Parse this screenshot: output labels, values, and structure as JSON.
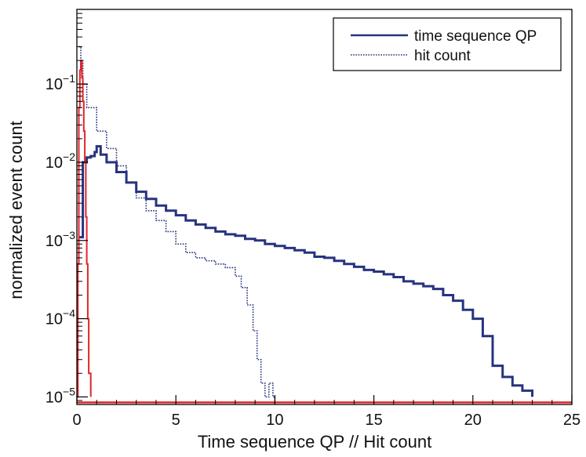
{
  "chart_data": {
    "type": "line",
    "xlabel": "Time sequence QP // Hit count",
    "ylabel": "normalized event count",
    "xlim": [
      0,
      25
    ],
    "ylim": [
      8e-06,
      0.9
    ],
    "yscale": "log",
    "x_ticks": [
      0,
      5,
      10,
      15,
      20,
      25
    ],
    "y_ticks": [
      {
        "value": 0.1,
        "base": "10",
        "exp": "−1"
      },
      {
        "value": 0.01,
        "base": "10",
        "exp": "−2"
      },
      {
        "value": 0.001,
        "base": "10",
        "exp": "−3"
      },
      {
        "value": 0.0001,
        "base": "10",
        "exp": "−4"
      },
      {
        "value": 1e-05,
        "base": "10",
        "exp": "−5"
      }
    ],
    "legend_position": "top-right",
    "series": [
      {
        "name": "time sequence QP",
        "style": "solid",
        "color": "#27337f",
        "x": [
          0.1,
          0.3,
          0.5,
          0.7,
          0.9,
          1.0,
          1.2,
          1.5,
          2.0,
          2.5,
          3.0,
          3.5,
          4.0,
          4.5,
          5.0,
          5.5,
          6.0,
          6.5,
          7.0,
          7.5,
          8.0,
          8.5,
          9.0,
          9.5,
          10.0,
          10.5,
          11.0,
          11.5,
          12.0,
          12.5,
          13.0,
          13.5,
          14.0,
          14.5,
          15.0,
          15.5,
          16.0,
          16.5,
          17.0,
          17.5,
          18.0,
          18.5,
          19.0,
          19.5,
          20.0,
          20.5,
          21.0,
          21.5,
          22.0,
          22.5,
          23.0
        ],
        "y": [
          0.0011,
          0.01,
          0.0115,
          0.012,
          0.0135,
          0.016,
          0.0125,
          0.01,
          0.0075,
          0.0055,
          0.0042,
          0.0034,
          0.0028,
          0.0024,
          0.0021,
          0.0018,
          0.0016,
          0.00145,
          0.0013,
          0.0012,
          0.00115,
          0.00105,
          0.001,
          0.0009,
          0.00085,
          0.0008,
          0.00075,
          0.0007,
          0.00062,
          0.0006,
          0.00055,
          0.0005,
          0.00046,
          0.00042,
          0.0004,
          0.00037,
          0.00034,
          0.0003,
          0.00028,
          0.00026,
          0.00024,
          0.0002,
          0.00017,
          0.00013,
          0.0001,
          6e-05,
          2.5e-05,
          1.8e-05,
          1.4e-05,
          1.2e-05,
          1e-05
        ]
      },
      {
        "name": "hit count",
        "style": "dotted",
        "color": "#27337f",
        "x": [
          0.1,
          0.2,
          0.3,
          0.5,
          1.0,
          1.5,
          2.0,
          2.5,
          3.0,
          3.5,
          4.0,
          4.5,
          5.0,
          5.5,
          6.0,
          6.5,
          7.0,
          7.5,
          8.0,
          8.3,
          8.6,
          8.9,
          9.1,
          9.3,
          9.5,
          9.7,
          9.9,
          10.0
        ],
        "y": [
          0.3,
          0.2,
          0.1,
          0.05,
          0.025,
          0.015,
          0.009,
          0.0055,
          0.0035,
          0.0024,
          0.0018,
          0.0013,
          0.0009,
          0.0007,
          0.0006,
          0.00055,
          0.0005,
          0.00045,
          0.00035,
          0.00025,
          0.00015,
          7e-05,
          3e-05,
          1.5e-05,
          1e-05,
          1.5e-05,
          1e-05,
          8e-06
        ]
      },
      {
        "name": "",
        "style": "solid",
        "color": "#e0262b",
        "x": [
          0.0,
          0.05,
          0.1,
          0.15,
          0.2,
          0.25,
          0.3,
          0.35,
          0.4,
          0.45,
          0.5,
          0.55,
          0.6,
          0.7
        ],
        "y": [
          1e-05,
          0.0005,
          0.05,
          0.15,
          0.2,
          0.12,
          0.06,
          0.025,
          0.01,
          0.002,
          0.0005,
          0.0001,
          2e-05,
          1e-05
        ]
      }
    ],
    "baseline": {
      "value": 8.5e-06,
      "color": "#e0262b"
    }
  }
}
